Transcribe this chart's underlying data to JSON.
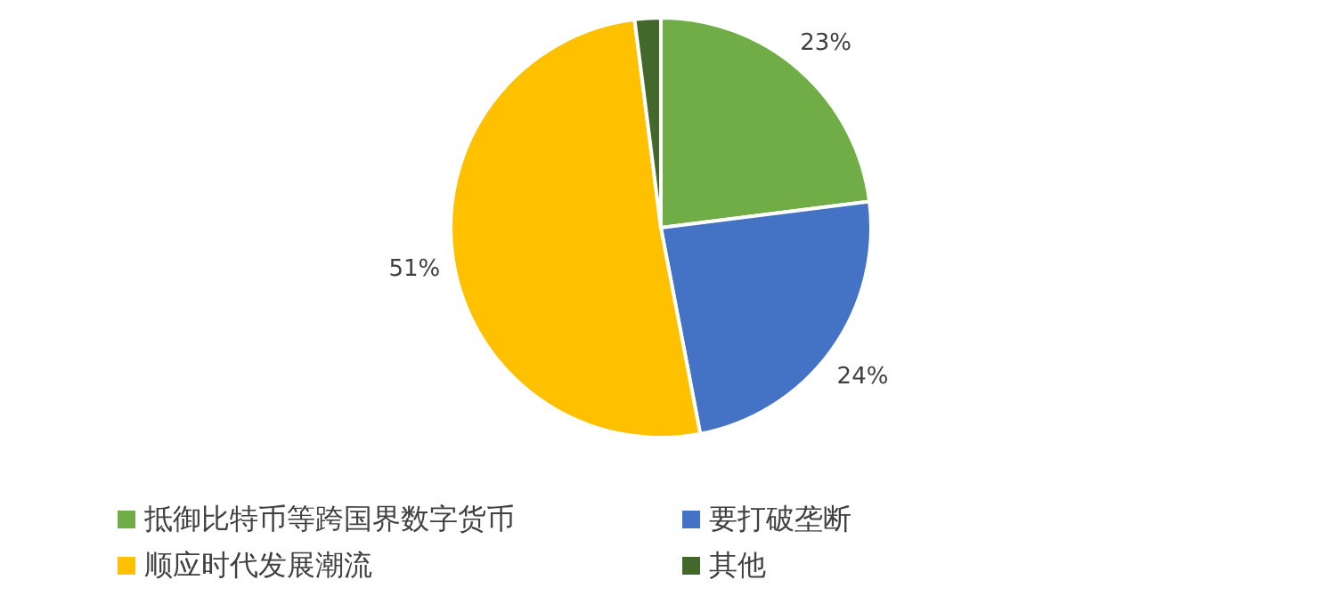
{
  "chart_data": {
    "type": "pie",
    "categories": [
      "抵御比特币等跨国界数字货币",
      "要打破垄断",
      "顺应时代发展潮流",
      "其他"
    ],
    "values": [
      23,
      24,
      51,
      2
    ],
    "colors": [
      "#70ad47",
      "#4472c4",
      "#ffc000",
      "#43682b"
    ],
    "value_labels": [
      "23%",
      "24%",
      "51%",
      null
    ],
    "legend": "bottom"
  }
}
